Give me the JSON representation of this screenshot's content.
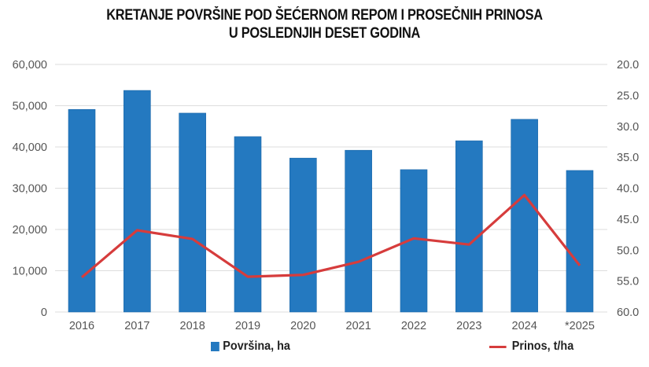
{
  "title": {
    "line1": "KRETANJE POVRŠINE POD ŠEĆERNOM REPOM I PROSEČNIH PRINOSA",
    "line2": "U POSLEDNJIH DESET GODINA"
  },
  "legend": {
    "bar_label": "Površina, ha",
    "line_label": "Prinos, t/ha"
  },
  "colors": {
    "bar": "#2479c0",
    "line": "#d63c3c",
    "grid": "#dddddd"
  },
  "chart_data": {
    "type": "bar",
    "title": "KRETANJE POVRŠINE POD ŠEĆERNOM REPOM I PROSEČNIH PRINOSA U POSLEDNJIH DESET GODINA",
    "categories": [
      "2016",
      "2017",
      "2018",
      "2019",
      "2020",
      "2021",
      "2022",
      "2023",
      "2024",
      "*2025"
    ],
    "series": [
      {
        "name": "Površina, ha",
        "type": "bar",
        "axis": "left",
        "values": [
          49100,
          53700,
          48200,
          42500,
          37300,
          39200,
          34500,
          41500,
          46700,
          34300
        ]
      },
      {
        "name": "Prinos, t/ha",
        "type": "line",
        "axis": "right",
        "values": [
          54.4,
          46.8,
          48.2,
          54.3,
          54.0,
          51.9,
          48.1,
          49.1,
          41.1,
          52.5
        ]
      }
    ],
    "left_axis": {
      "ylim": [
        0,
        60000
      ],
      "ticks": [
        "0",
        "10,000",
        "20,000",
        "30,000",
        "40,000",
        "50,000",
        "60,000"
      ]
    },
    "right_axis": {
      "ylim": [
        60.0,
        20.0
      ],
      "inverted": true,
      "ticks": [
        "20.0",
        "25.0",
        "30.0",
        "35.0",
        "40.0",
        "45.0",
        "50.0",
        "55.0",
        "60.0"
      ]
    },
    "xlabel": "",
    "ylabel": "",
    "grid": true,
    "legend_position": "bottom"
  }
}
